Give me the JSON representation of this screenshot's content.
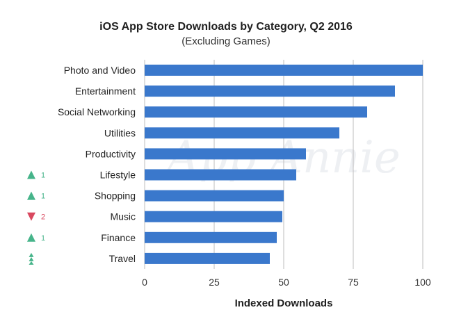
{
  "chart_data": {
    "type": "bar",
    "orientation": "horizontal",
    "title": "iOS App Store Downloads by Category, Q2 2016",
    "subtitle": "(Excluding Games)",
    "xlabel": "Indexed Downloads",
    "ylabel": "",
    "xlim": [
      0,
      100
    ],
    "xticks": [
      0,
      25,
      50,
      75,
      100
    ],
    "grid": "vertical",
    "watermark": "App Annie",
    "colors": {
      "bar": "#3a78cc",
      "rank_up": "#46b48a",
      "rank_down": "#d9485f",
      "grid": "#bdbdbd"
    },
    "categories": [
      "Photo and Video",
      "Entertainment",
      "Social Networking",
      "Utilities",
      "Productivity",
      "Lifestyle",
      "Shopping",
      "Music",
      "Finance",
      "Travel"
    ],
    "values": [
      100,
      90,
      80,
      70,
      58,
      54.5,
      50,
      49.5,
      47.5,
      45
    ],
    "rank_changes": [
      {
        "direction": "",
        "label": ""
      },
      {
        "direction": "",
        "label": ""
      },
      {
        "direction": "",
        "label": ""
      },
      {
        "direction": "",
        "label": ""
      },
      {
        "direction": "",
        "label": ""
      },
      {
        "direction": "up",
        "label": "1"
      },
      {
        "direction": "up",
        "label": "1"
      },
      {
        "direction": "down",
        "label": "2"
      },
      {
        "direction": "up",
        "label": "1"
      },
      {
        "direction": "new",
        "label": ""
      }
    ]
  }
}
